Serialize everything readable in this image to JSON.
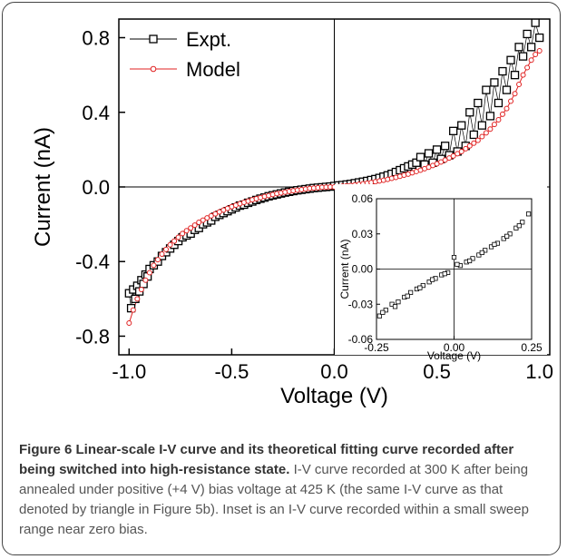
{
  "chart_data": [
    {
      "type": "scatter",
      "title": "",
      "xlabel": "Voltage (V)",
      "ylabel": "Current (nA)",
      "xlim": [
        -1.05,
        1.05
      ],
      "ylim": [
        -0.9,
        0.9
      ],
      "xticks": [
        "-1.0",
        "-0.5",
        "0.0",
        "0.5",
        "1.0"
      ],
      "yticks": [
        "-0.8",
        "-0.4",
        "0.0",
        "0.4",
        "0.8"
      ],
      "grid": false,
      "legend": "top-left",
      "series": [
        {
          "name": "Expt.",
          "color": "#000000",
          "marker": "open-square",
          "x": [
            -1.0,
            -0.99,
            -0.98,
            -0.97,
            -0.96,
            -0.95,
            -0.94,
            -0.93,
            -0.92,
            -0.91,
            -0.9,
            -0.88,
            -0.86,
            -0.84,
            -0.82,
            -0.8,
            -0.78,
            -0.76,
            -0.74,
            -0.72,
            -0.7,
            -0.68,
            -0.66,
            -0.64,
            -0.62,
            -0.6,
            -0.58,
            -0.56,
            -0.54,
            -0.52,
            -0.5,
            -0.48,
            -0.46,
            -0.44,
            -0.42,
            -0.4,
            -0.38,
            -0.36,
            -0.34,
            -0.32,
            -0.3,
            -0.28,
            -0.26,
            -0.24,
            -0.22,
            -0.2,
            -0.18,
            -0.16,
            -0.14,
            -0.12,
            -0.1,
            -0.08,
            -0.06,
            -0.04,
            -0.02,
            0.0,
            0.02,
            0.04,
            0.06,
            0.08,
            0.1,
            0.12,
            0.14,
            0.16,
            0.18,
            0.2,
            0.22,
            0.24,
            0.26,
            0.28,
            0.3,
            0.32,
            0.34,
            0.36,
            0.38,
            0.4,
            0.42,
            0.44,
            0.46,
            0.48,
            0.5,
            0.52,
            0.54,
            0.56,
            0.58,
            0.6,
            0.62,
            0.64,
            0.66,
            0.68,
            0.7,
            0.72,
            0.74,
            0.76,
            0.78,
            0.8,
            0.82,
            0.84,
            0.86,
            0.88,
            0.9,
            0.92,
            0.94,
            0.96,
            0.98,
            1.0
          ],
          "y": [
            -0.57,
            -0.65,
            -0.55,
            -0.6,
            -0.53,
            -0.56,
            -0.5,
            -0.52,
            -0.47,
            -0.48,
            -0.44,
            -0.42,
            -0.4,
            -0.37,
            -0.35,
            -0.33,
            -0.31,
            -0.29,
            -0.27,
            -0.26,
            -0.25,
            -0.23,
            -0.22,
            -0.2,
            -0.19,
            -0.18,
            -0.16,
            -0.15,
            -0.14,
            -0.13,
            -0.12,
            -0.11,
            -0.1,
            -0.095,
            -0.085,
            -0.078,
            -0.07,
            -0.063,
            -0.057,
            -0.05,
            -0.045,
            -0.04,
            -0.035,
            -0.03,
            -0.026,
            -0.022,
            -0.018,
            -0.015,
            -0.012,
            -0.009,
            -0.006,
            -0.004,
            -0.002,
            0.0,
            0.002,
            0.005,
            0.008,
            0.01,
            0.013,
            0.016,
            0.02,
            0.024,
            0.028,
            0.032,
            0.037,
            0.042,
            0.048,
            0.055,
            0.062,
            0.07,
            0.08,
            0.09,
            0.1,
            0.11,
            0.12,
            0.13,
            0.16,
            0.12,
            0.18,
            0.13,
            0.2,
            0.15,
            0.22,
            0.17,
            0.3,
            0.19,
            0.33,
            0.22,
            0.4,
            0.28,
            0.45,
            0.33,
            0.52,
            0.38,
            0.56,
            0.45,
            0.62,
            0.52,
            0.68,
            0.6,
            0.75,
            0.7,
            0.82,
            0.75,
            0.88,
            0.8
          ]
        },
        {
          "name": "Model",
          "color": "#e02020",
          "marker": "open-circle-line",
          "x": [
            -1.0,
            -0.98,
            -0.96,
            -0.94,
            -0.92,
            -0.9,
            -0.88,
            -0.86,
            -0.84,
            -0.82,
            -0.8,
            -0.78,
            -0.76,
            -0.74,
            -0.72,
            -0.7,
            -0.68,
            -0.66,
            -0.64,
            -0.62,
            -0.6,
            -0.58,
            -0.56,
            -0.54,
            -0.52,
            -0.5,
            -0.48,
            -0.46,
            -0.44,
            -0.42,
            -0.4,
            -0.38,
            -0.36,
            -0.34,
            -0.32,
            -0.3,
            -0.28,
            -0.26,
            -0.24,
            -0.22,
            -0.2,
            -0.18,
            -0.16,
            -0.14,
            -0.12,
            -0.1,
            -0.08,
            -0.06,
            -0.04,
            -0.02,
            0.0,
            0.02,
            0.04,
            0.06,
            0.08,
            0.1,
            0.12,
            0.14,
            0.16,
            0.18,
            0.2,
            0.22,
            0.24,
            0.26,
            0.28,
            0.3,
            0.32,
            0.34,
            0.36,
            0.38,
            0.4,
            0.42,
            0.44,
            0.46,
            0.48,
            0.5,
            0.52,
            0.54,
            0.56,
            0.58,
            0.6,
            0.62,
            0.64,
            0.66,
            0.68,
            0.7,
            0.72,
            0.74,
            0.76,
            0.78,
            0.8,
            0.82,
            0.84,
            0.86,
            0.88,
            0.9,
            0.92,
            0.94,
            0.96,
            0.98,
            1.0
          ],
          "y": [
            -0.73,
            -0.66,
            -0.6,
            -0.55,
            -0.5,
            -0.46,
            -0.42,
            -0.39,
            -0.36,
            -0.335,
            -0.31,
            -0.29,
            -0.27,
            -0.25,
            -0.235,
            -0.22,
            -0.205,
            -0.19,
            -0.178,
            -0.166,
            -0.155,
            -0.144,
            -0.134,
            -0.124,
            -0.115,
            -0.106,
            -0.098,
            -0.09,
            -0.083,
            -0.076,
            -0.069,
            -0.063,
            -0.057,
            -0.051,
            -0.046,
            -0.041,
            -0.036,
            -0.032,
            -0.028,
            -0.024,
            -0.02,
            -0.017,
            -0.014,
            -0.011,
            -0.008,
            -0.006,
            -0.004,
            -0.002,
            -0.001,
            0.0,
            0.0,
            0.002,
            0.004,
            0.006,
            0.008,
            0.011,
            0.014,
            0.017,
            0.02,
            0.024,
            0.028,
            0.032,
            0.036,
            0.041,
            0.046,
            0.051,
            0.057,
            0.063,
            0.069,
            0.076,
            0.083,
            0.09,
            0.098,
            0.106,
            0.115,
            0.124,
            0.134,
            0.144,
            0.155,
            0.166,
            0.178,
            0.19,
            0.205,
            0.22,
            0.235,
            0.25,
            0.27,
            0.29,
            0.31,
            0.335,
            0.36,
            0.39,
            0.42,
            0.46,
            0.5,
            0.55,
            0.6,
            0.64,
            0.68,
            0.71,
            0.73
          ]
        }
      ]
    },
    {
      "type": "scatter",
      "title": "",
      "xlabel": "Voltage (V)",
      "ylabel": "Current (nA)",
      "xlim": [
        -0.25,
        0.25
      ],
      "ylim": [
        -0.06,
        0.06
      ],
      "xticks": [
        "-0.25",
        "0.00",
        "0.25"
      ],
      "yticks": [
        "0.06",
        "0.03",
        "0.00",
        "-0.03",
        "-0.06"
      ],
      "grid": false,
      "legend": "none",
      "series": [
        {
          "name": "",
          "color": "#000000",
          "marker": "open-square-small",
          "x": [
            -0.24,
            -0.22,
            -0.2,
            -0.18,
            -0.16,
            -0.14,
            -0.12,
            -0.1,
            -0.08,
            -0.06,
            -0.04,
            -0.02,
            0.0,
            0.02,
            0.04,
            0.06,
            0.08,
            0.1,
            0.12,
            0.14,
            0.16,
            0.18,
            0.2,
            0.22,
            0.24,
            -0.23,
            -0.19,
            -0.15,
            -0.11,
            -0.07,
            -0.03,
            0.01,
            0.05,
            0.09,
            0.13,
            0.17,
            0.21
          ],
          "y": [
            -0.04,
            -0.035,
            -0.03,
            -0.028,
            -0.024,
            -0.02,
            -0.017,
            -0.014,
            -0.011,
            -0.008,
            -0.005,
            -0.003,
            0.01,
            0.003,
            0.006,
            0.009,
            0.012,
            0.016,
            0.019,
            0.022,
            0.026,
            0.03,
            0.035,
            0.04,
            0.047,
            -0.037,
            -0.032,
            -0.023,
            -0.016,
            -0.009,
            -0.004,
            0.004,
            0.007,
            0.014,
            0.021,
            0.028,
            0.037
          ]
        }
      ]
    }
  ],
  "caption": {
    "title": "Figure 6 Linear-scale I-V curve and its theoretical fitting curve recorded after being switched into high-resistance state.",
    "body": "I-V curve recorded at 300 K after being annealed under positive (+4 V) bias voltage at 425 K (the same I-V curve as that denoted by triangle in Figure 5b). Inset is an I-V curve recorded within a small sweep range near zero bias."
  }
}
